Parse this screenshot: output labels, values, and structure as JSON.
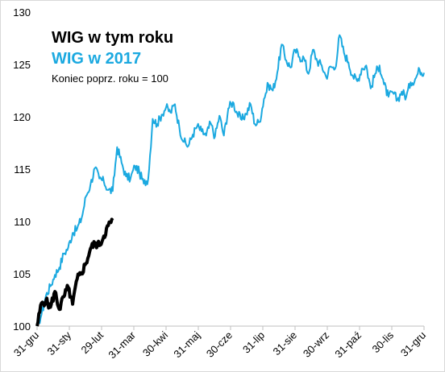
{
  "chart_data": {
    "type": "line",
    "ylim": [
      100,
      130
    ],
    "yticks": [
      100,
      105,
      110,
      115,
      120,
      125,
      130
    ],
    "xlabels": [
      "31-gru",
      "31-sty",
      "29-lut",
      "31-mar",
      "30-kwi",
      "31-maj",
      "30-cze",
      "31-lip",
      "31-sie",
      "30-wrz",
      "31-paź",
      "30-lis",
      "31-gru"
    ],
    "annotation": "Koniec poprz. roku = 100",
    "colors": {
      "current": "#000000",
      "previous": "#1ba9e0"
    },
    "series": [
      {
        "name": "WIG w tym roku",
        "week_values": [
          100,
          102.2,
          102.4,
          101.8,
          103.3,
          101.6,
          102.8,
          103.7,
          102.1,
          104.5,
          105.1,
          106,
          107.4,
          107.9,
          107.7,
          108.6,
          109.6,
          110.1
        ]
      },
      {
        "name": "WIG w 2017",
        "week_values": [
          100,
          101.1,
          102.9,
          103.8,
          104.9,
          105.6,
          106.9,
          107.5,
          108.9,
          109.3,
          110.3,
          112.4,
          113.5,
          115.1,
          114.1,
          113.8,
          113,
          112.9,
          117.1,
          115.6,
          114.3,
          114.1,
          115.3,
          114.7,
          113.6,
          114.1,
          119.8,
          119.3,
          120.2,
          120.9,
          120.4,
          121.2,
          118.9,
          117.6,
          117.2,
          118.3,
          119.1,
          118.6,
          118.2,
          119.4,
          118.1,
          120.1,
          118.2,
          120.8,
          121.4,
          120.3,
          119.7,
          120.3,
          121.2,
          119.3,
          119.5,
          121.7,
          123.1,
          122.5,
          124.2,
          126.9,
          125.4,
          124.7,
          126.4,
          125.7,
          125.6,
          124.1,
          126.4,
          125.3,
          124.9,
          123.8,
          124.8,
          124.6,
          127.8,
          126.1,
          125.2,
          123.9,
          123.4,
          124.6,
          124.9,
          122.7,
          124.1,
          124.9,
          123.1,
          121.9,
          122.3,
          121.6,
          122.4,
          121.9,
          123.3,
          123.6,
          124.5,
          124.2
        ]
      }
    ]
  }
}
